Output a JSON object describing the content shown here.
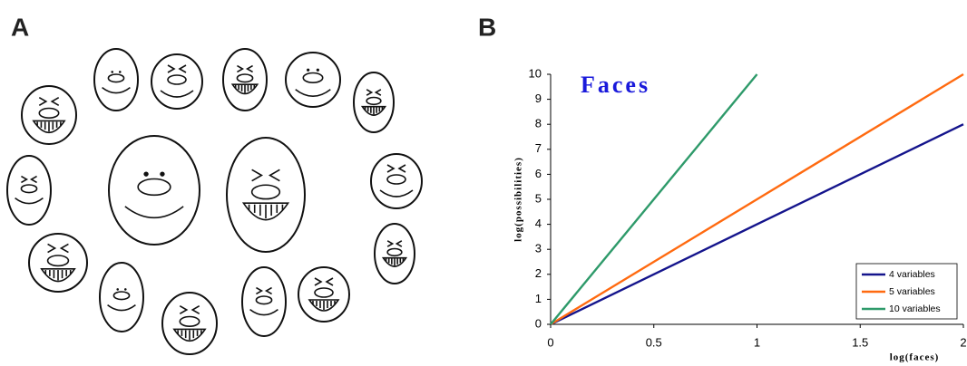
{
  "panels": [
    "A",
    "B"
  ],
  "chart_data": {
    "type": "line",
    "title": "Faces",
    "title_color": "#1a1adb",
    "x_label": "log(faces)",
    "y_label": "log(possibilities)",
    "x": [
      0,
      1,
      2
    ],
    "series": [
      {
        "name": "4 variables",
        "color": "#14148c",
        "values": [
          0,
          4,
          8
        ]
      },
      {
        "name": "5 variables",
        "color": "#ff6a10",
        "values": [
          0,
          5,
          10
        ]
      },
      {
        "name": "10 variables",
        "color": "#2e9a6a",
        "values": [
          0,
          10,
          null
        ]
      }
    ],
    "xlim": [
      0,
      2
    ],
    "xticks": [
      0,
      0.5,
      1,
      1.5,
      2
    ],
    "ylim": [
      0,
      10
    ],
    "yticks": [
      0,
      1,
      2,
      3,
      4,
      5,
      6,
      7,
      8,
      9,
      10
    ],
    "grid": false,
    "legend": "bottom-right"
  }
}
